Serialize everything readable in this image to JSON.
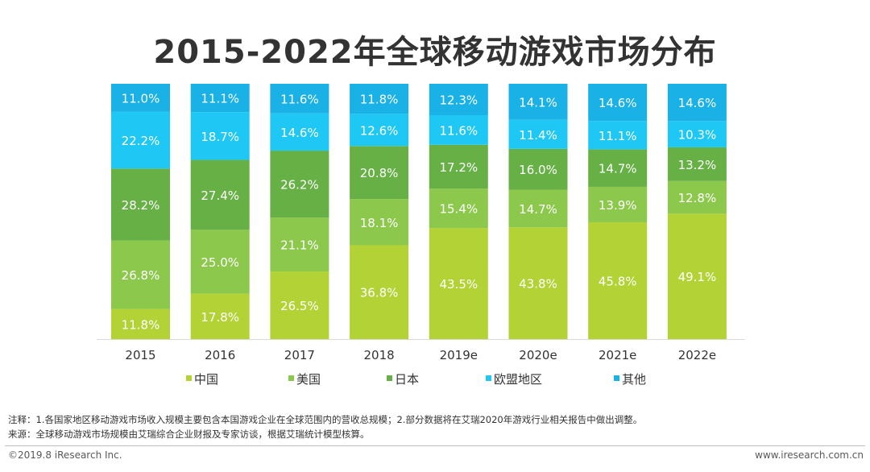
{
  "title": "2015-2022年全球移动游戏市场分布",
  "chart_data": {
    "type": "bar",
    "stacked": true,
    "percent": true,
    "categories": [
      "2015",
      "2016",
      "2017",
      "2018",
      "2019e",
      "2020e",
      "2021e",
      "2022e"
    ],
    "series": [
      {
        "name": "中国",
        "color": "#b2d235",
        "values": [
          11.8,
          17.8,
          26.5,
          36.8,
          43.5,
          43.8,
          45.8,
          49.1
        ]
      },
      {
        "name": "美国",
        "color": "#8cc84b",
        "values": [
          26.8,
          25.0,
          21.1,
          18.1,
          15.4,
          14.7,
          13.9,
          12.8
        ]
      },
      {
        "name": "日本",
        "color": "#66b046",
        "values": [
          28.2,
          27.4,
          26.2,
          20.8,
          17.2,
          16.0,
          14.7,
          13.2
        ]
      },
      {
        "name": "欧盟地区",
        "color": "#1fc8f4",
        "values": [
          22.2,
          18.7,
          14.6,
          12.6,
          11.6,
          11.4,
          11.1,
          10.3
        ]
      },
      {
        "name": "其他",
        "color": "#19b1e6",
        "values": [
          11.0,
          11.1,
          11.6,
          11.8,
          12.3,
          14.1,
          14.6,
          14.6
        ]
      }
    ],
    "value_suffix": "%",
    "legend_position": "bottom",
    "grid": false
  },
  "notes": {
    "line1": "注释：1.各国家地区移动游戏市场收入规模主要包含本国游戏企业在全球范围内的营收总规模；2.部分数据将在艾瑞2020年游戏行业相关报告中做出调整。",
    "line2": "来源：全球移动游戏市场规模由艾瑞综合企业财报及专家访谈，根据艾瑞统计模型核算。"
  },
  "footer": {
    "copyright": "©2019.8 iResearch Inc.",
    "website": "www.iresearch.com.cn"
  }
}
